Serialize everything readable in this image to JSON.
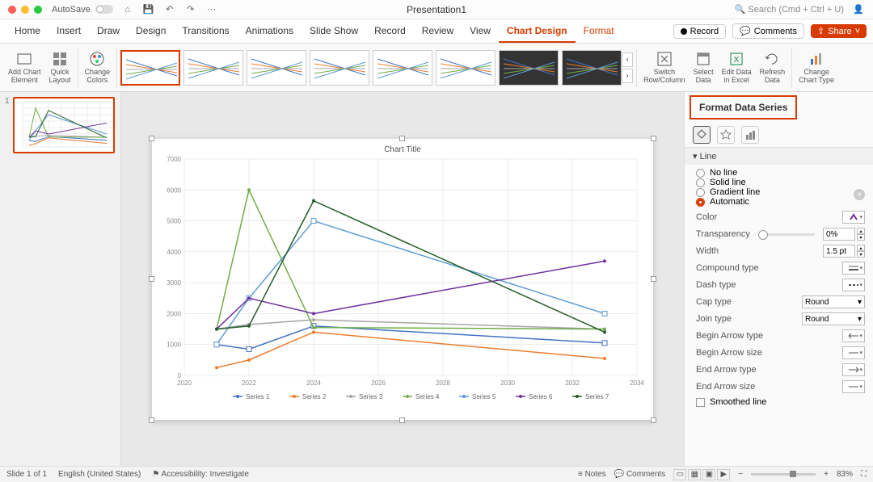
{
  "window": {
    "title": "Presentation1",
    "autosave_label": "AutoSave",
    "search_placeholder": "Search (Cmd + Ctrl + U)"
  },
  "traffic": {
    "close": "#ff5f56",
    "min": "#ffbd2e",
    "max": "#27c93f"
  },
  "ribbon": {
    "tabs": [
      "Home",
      "Insert",
      "Draw",
      "Design",
      "Transitions",
      "Animations",
      "Slide Show",
      "Record",
      "Review",
      "View",
      "Chart Design",
      "Format"
    ],
    "active_tab": "Chart Design",
    "context_tabs": [
      "Chart Design",
      "Format"
    ],
    "right": {
      "record": "Record",
      "comments": "Comments",
      "share": "Share"
    },
    "groups": {
      "add_chart_element": "Add Chart\nElement",
      "quick_layout": "Quick\nLayout",
      "change_colors": "Change\nColors",
      "switch_rc": "Switch\nRow/Column",
      "select_data": "Select\nData",
      "edit_data": "Edit Data\nin Excel",
      "refresh_data": "Refresh\nData",
      "change_type": "Change\nChart Type"
    },
    "gallery": {
      "count": 8,
      "selected": 0,
      "dark_from": 6
    }
  },
  "format_panel": {
    "title": "Format Data Series",
    "section": "Line",
    "line_options": [
      "No line",
      "Solid line",
      "Gradient line",
      "Automatic"
    ],
    "line_selected": "Automatic",
    "color_label": "Color",
    "transparency_label": "Transparency",
    "transparency_value": "0%",
    "width_label": "Width",
    "width_value": "1.5 pt",
    "compound_label": "Compound type",
    "dash_label": "Dash type",
    "cap_label": "Cap type",
    "cap_value": "Round",
    "join_label": "Join type",
    "join_value": "Round",
    "begin_arrow_type": "Begin Arrow type",
    "begin_arrow_size": "Begin Arrow size",
    "end_arrow_type": "End Arrow type",
    "end_arrow_size": "End Arrow size",
    "smoothed": "Smoothed line"
  },
  "chart": {
    "title": "Chart Title",
    "x_categories": [
      2020,
      2022,
      2024,
      2026,
      2028,
      2030,
      2032,
      2034
    ],
    "x_data": [
      2021,
      2022,
      2024,
      2033
    ],
    "y_ticks": [
      0,
      1000,
      2000,
      3000,
      4000,
      5000,
      6000,
      7000
    ],
    "ylim": [
      0,
      7000
    ],
    "series": [
      {
        "name": "Series 1",
        "color": "#4472c4",
        "values": [
          1000,
          850,
          1600,
          1050
        ],
        "marker": "square"
      },
      {
        "name": "Series 2",
        "color": "#ed7d31",
        "values": [
          250,
          500,
          1400,
          550
        ]
      },
      {
        "name": "Series 3",
        "color": "#a5a5a5",
        "values": [
          1500,
          1650,
          1800,
          1500
        ]
      },
      {
        "name": "Series 4",
        "color": "#70ad47",
        "values": [
          1500,
          6000,
          1550,
          1500
        ]
      },
      {
        "name": "Series 5",
        "color": "#5b9bd5",
        "values": [
          1000,
          2500,
          5000,
          2000
        ],
        "marker": "square"
      },
      {
        "name": "Series 6",
        "color": "#7030a0",
        "values": [
          1500,
          2500,
          2000,
          3700
        ]
      },
      {
        "name": "Series 7",
        "color": "#255e27",
        "values": [
          1500,
          1600,
          5650,
          1400
        ]
      }
    ],
    "grid_color": "#d9d9d9",
    "axis_color": "#bfbfbf",
    "label_fontsize": 8,
    "title_fontsize": 10,
    "background": "#ffffff"
  },
  "status": {
    "slide": "Slide 1 of 1",
    "lang": "English (United States)",
    "accessibility": "Accessibility: Investigate",
    "notes": "Notes",
    "comments": "Comments",
    "zoom": "83%"
  }
}
